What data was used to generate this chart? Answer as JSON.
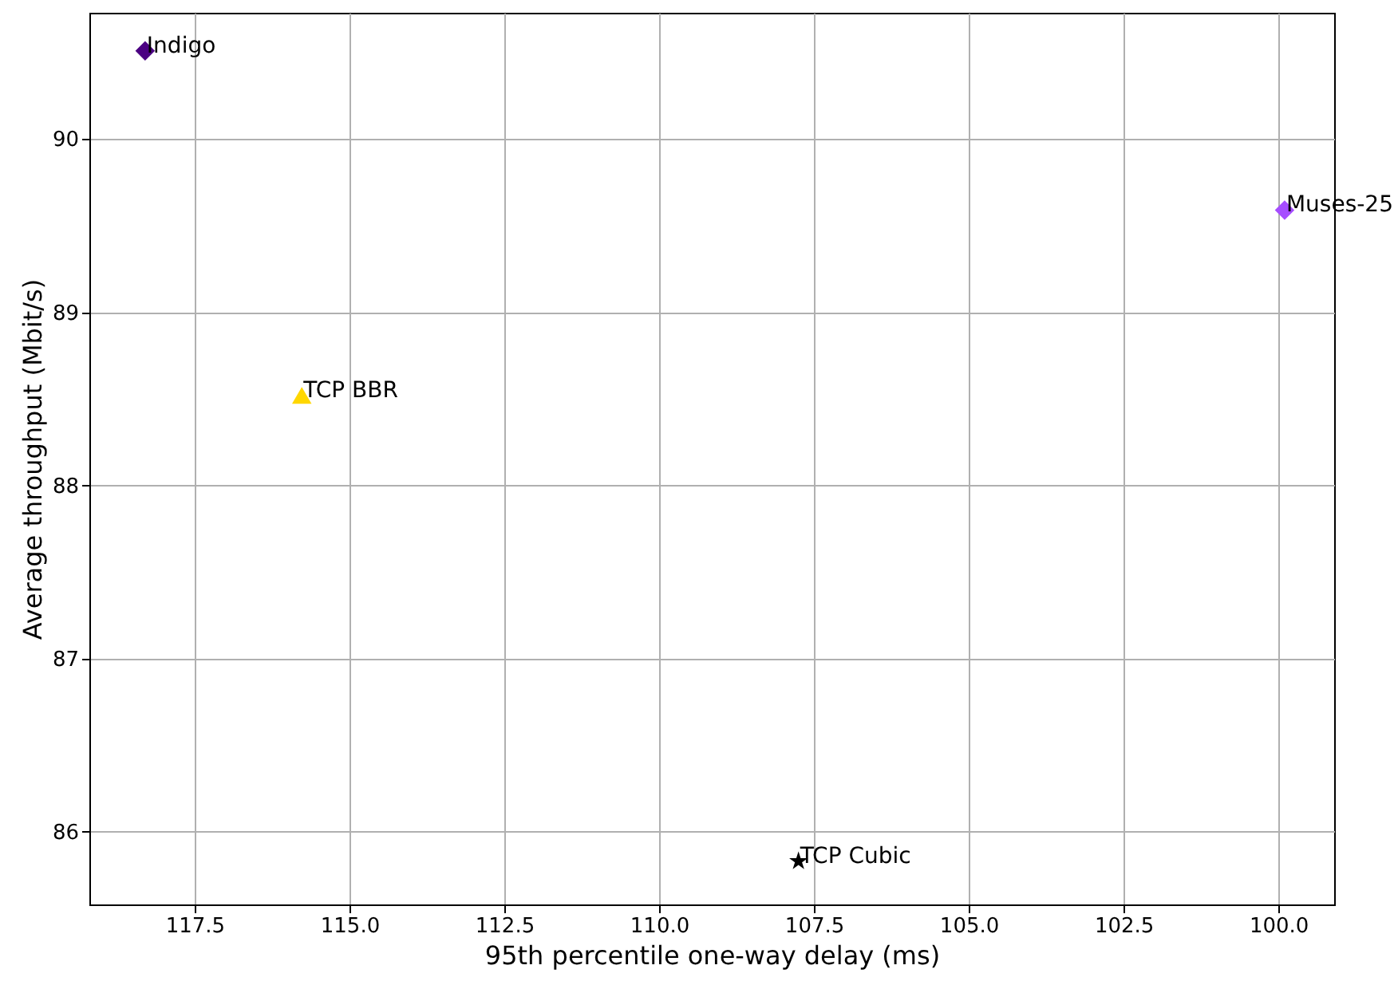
{
  "chart_data": {
    "type": "scatter",
    "xlabel": "95th percentile one-way delay (ms)",
    "ylabel": "Average throughput (Mbit/s)",
    "xlim": [
      119.2,
      99.1
    ],
    "ylim": [
      85.58,
      90.73
    ],
    "xticks": [
      117.5,
      {
        "value": 115,
        "label": "115.0"
      },
      112.5,
      {
        "value": 110,
        "label": "110.0"
      },
      107.5,
      {
        "value": 105,
        "label": "105.0"
      },
      102.5,
      {
        "value": 100,
        "label": "100.0"
      }
    ],
    "yticks": [
      86,
      87,
      88,
      89,
      90
    ],
    "grid": true,
    "series": [
      {
        "name": "Indigo",
        "color": "#4b0082",
        "marker": "diamond",
        "x": [
          118.3
        ],
        "values": [
          90.51
        ]
      },
      {
        "name": "Muses-25",
        "color": "#a64dff",
        "marker": "diamond",
        "x": [
          99.9
        ],
        "values": [
          89.59
        ]
      },
      {
        "name": "TCP BBR",
        "color": "#ffd700",
        "marker": "triangle",
        "x": [
          115.77
        ],
        "values": [
          88.52
        ]
      },
      {
        "name": "TCP Cubic",
        "color": "#000000",
        "marker": "star",
        "x": [
          107.75
        ],
        "values": [
          85.83
        ]
      }
    ]
  }
}
